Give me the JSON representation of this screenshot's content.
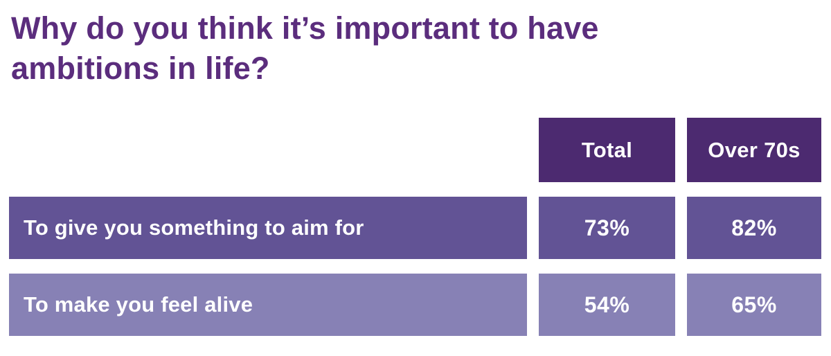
{
  "title": "Why do you think it’s important to have ambitions in life?",
  "table": {
    "columns": [
      "Total",
      "Over 70s"
    ],
    "rows": [
      {
        "label": "To give you something to aim for",
        "values": [
          "73%",
          "82%"
        ]
      },
      {
        "label": "To make you feel alive",
        "values": [
          "54%",
          "65%"
        ]
      }
    ]
  },
  "colors": {
    "title_text": "#5b2d7d",
    "header_bg": "#4c2a70",
    "row1_bg": "#625395",
    "row2_bg": "#8781b5",
    "cell_text": "#ffffff",
    "background": "#ffffff"
  },
  "chart_data": {
    "type": "table",
    "title": "Why do you think it’s important to have ambitions in life?",
    "categories": [
      "To give you something to aim for",
      "To make you feel alive"
    ],
    "series": [
      {
        "name": "Total",
        "values": [
          73,
          54
        ]
      },
      {
        "name": "Over 70s",
        "values": [
          82,
          65
        ]
      }
    ],
    "value_format": "percent",
    "legend_position": "top",
    "grid": false
  }
}
